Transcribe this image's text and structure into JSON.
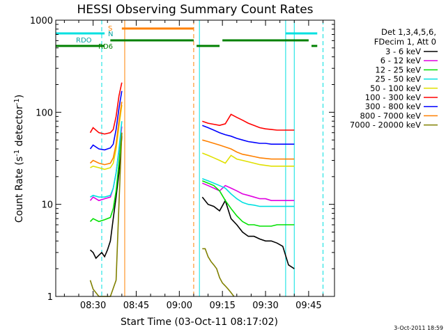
{
  "chart_data": {
    "type": "line",
    "title": "HESSI Observing Summary Count Rates",
    "xlabel": "Start Time (03-Oct-11 08:17:02)",
    "ylabel_main": "Count Rate (s",
    "ylabel_sup1": "-1",
    "ylabel_mid": " detector",
    "ylabel_sup2": "-1",
    "ylabel_end": ")",
    "yscale": "log",
    "ylim": [
      1,
      1000
    ],
    "xlim": [
      "08:17",
      "09:54"
    ],
    "x_ticks": [
      "08:30",
      "08:45",
      "09:00",
      "09:15",
      "09:30",
      "09:45"
    ],
    "y_ticks": [
      "1",
      "10",
      "100",
      "1000"
    ],
    "legend_header": [
      "Det 1,3,4,5,6,",
      "FDecim 1, Att 0"
    ],
    "timestamp": "3-Oct-2011 18:59",
    "annotations": {
      "rdo": "RDO",
      "rd6": "RD6",
      "s": "S",
      "n": "N"
    },
    "series": [
      {
        "name": "3 - 6 keV",
        "color": "#000000",
        "x": [
          "08:29",
          "08:30",
          "08:31",
          "08:32",
          "08:33",
          "08:34",
          "08:35",
          "08:36",
          "08:37",
          "08:38",
          "08:39",
          "08:40",
          "09:08",
          "09:10",
          "09:12",
          "09:14",
          "09:16",
          "09:18",
          "09:20",
          "09:22",
          "09:24",
          "09:26",
          "09:28",
          "09:30",
          "09:32",
          "09:34",
          "09:36",
          "09:38",
          "09:40"
        ],
        "y": [
          3.2,
          3.0,
          2.6,
          2.8,
          3.0,
          2.7,
          3.2,
          4,
          7,
          12,
          22,
          55,
          12,
          10,
          9.5,
          8.5,
          11,
          7,
          6,
          5,
          4.5,
          4.5,
          4.2,
          4,
          4,
          3.8,
          3.5,
          2.2,
          2.0
        ]
      },
      {
        "name": "6 - 12 keV",
        "color": "#e000e0",
        "x": [
          "08:29",
          "08:30",
          "08:32",
          "08:34",
          "08:36",
          "08:37",
          "08:38",
          "08:39",
          "08:40",
          "09:08",
          "09:10",
          "09:12",
          "09:14",
          "09:16",
          "09:18",
          "09:20",
          "09:22",
          "09:24",
          "09:26",
          "09:28",
          "09:30",
          "09:32",
          "09:34",
          "09:36",
          "09:38",
          "09:40"
        ],
        "y": [
          11,
          12,
          11,
          11.5,
          12,
          15,
          22,
          38,
          70,
          17,
          16,
          15,
          14,
          16,
          15,
          14,
          13,
          12.5,
          12,
          11.5,
          11.5,
          11,
          11,
          11,
          11,
          11
        ]
      },
      {
        "name": "12 - 25 keV",
        "color": "#00e000",
        "x": [
          "08:29",
          "08:30",
          "08:32",
          "08:34",
          "08:36",
          "08:37",
          "08:38",
          "08:39",
          "08:40",
          "09:08",
          "09:10",
          "09:12",
          "09:14",
          "09:16",
          "09:18",
          "09:20",
          "09:22",
          "09:24",
          "09:26",
          "09:28",
          "09:30",
          "09:32",
          "09:34",
          "09:36",
          "09:38",
          "09:40"
        ],
        "y": [
          6.5,
          7,
          6.5,
          6.8,
          7.2,
          9,
          14,
          28,
          60,
          18,
          17,
          16,
          14,
          11,
          9,
          7.5,
          6.5,
          6,
          6,
          5.8,
          5.8,
          5.8,
          6,
          6,
          6,
          6
        ]
      },
      {
        "name": "25 - 50 keV",
        "color": "#00e0e0",
        "x": [
          "08:29",
          "08:30",
          "08:32",
          "08:34",
          "08:36",
          "08:37",
          "08:38",
          "08:39",
          "08:40",
          "09:08",
          "09:10",
          "09:12",
          "09:14",
          "09:16",
          "09:18",
          "09:20",
          "09:22",
          "09:24",
          "09:26",
          "09:28",
          "09:30",
          "09:32",
          "09:34",
          "09:36",
          "09:38",
          "09:40"
        ],
        "y": [
          12,
          12.5,
          12,
          12,
          12.5,
          15,
          22,
          40,
          80,
          19,
          18,
          17,
          16,
          15,
          13,
          11.5,
          10.5,
          10,
          9.8,
          9.5,
          9.5,
          9.5,
          9.5,
          9.5,
          9.5,
          9.5
        ]
      },
      {
        "name": "50 - 100 keV",
        "color": "#e0e000",
        "x": [
          "08:29",
          "08:30",
          "08:32",
          "08:34",
          "08:36",
          "08:37",
          "08:38",
          "08:39",
          "08:40",
          "09:08",
          "09:10",
          "09:12",
          "09:14",
          "09:16",
          "09:18",
          "09:20",
          "09:22",
          "09:24",
          "09:26",
          "09:28",
          "09:30",
          "09:32",
          "09:34",
          "09:36",
          "09:38",
          "09:40"
        ],
        "y": [
          25,
          26,
          25,
          24,
          25,
          28,
          40,
          70,
          120,
          36,
          34,
          32,
          30,
          28,
          34,
          31,
          30,
          29,
          28,
          27,
          26.5,
          26,
          26,
          26,
          26,
          26
        ]
      },
      {
        "name": "100 - 300 keV",
        "color": "#ff0000",
        "x": [
          "08:29",
          "08:30",
          "08:32",
          "08:34",
          "08:36",
          "08:37",
          "08:38",
          "08:39",
          "08:40",
          "09:08",
          "09:10",
          "09:12",
          "09:14",
          "09:16",
          "09:18",
          "09:20",
          "09:22",
          "09:24",
          "09:26",
          "09:28",
          "09:30",
          "09:32",
          "09:34",
          "09:36",
          "09:38",
          "09:40"
        ],
        "y": [
          60,
          68,
          60,
          58,
          60,
          65,
          90,
          150,
          210,
          80,
          76,
          74,
          72,
          75,
          95,
          88,
          82,
          76,
          72,
          68,
          66,
          65,
          64,
          64,
          64,
          64
        ]
      },
      {
        "name": "300 - 800 keV",
        "color": "#0000ff",
        "x": [
          "08:29",
          "08:30",
          "08:32",
          "08:34",
          "08:36",
          "08:37",
          "08:38",
          "08:39",
          "08:40",
          "09:08",
          "09:10",
          "09:12",
          "09:14",
          "09:16",
          "09:18",
          "09:20",
          "09:22",
          "09:24",
          "09:26",
          "09:28",
          "09:30",
          "09:32",
          "09:34",
          "09:36",
          "09:38",
          "09:40"
        ],
        "y": [
          40,
          44,
          40,
          39,
          41,
          45,
          65,
          110,
          170,
          72,
          68,
          64,
          60,
          57,
          55,
          52,
          50,
          48,
          47,
          46,
          46,
          45,
          45,
          45,
          45,
          45
        ]
      },
      {
        "name": "800 - 7000 keV",
        "color": "#ff8000",
        "x": [
          "08:29",
          "08:30",
          "08:32",
          "08:34",
          "08:36",
          "08:37",
          "08:38",
          "08:39",
          "08:40",
          "09:08",
          "09:10",
          "09:12",
          "09:14",
          "09:16",
          "09:18",
          "09:20",
          "09:22",
          "09:24",
          "09:26",
          "09:28",
          "09:30",
          "09:32",
          "09:34",
          "09:36",
          "09:38",
          "09:40"
        ],
        "y": [
          28,
          30,
          28,
          27,
          28,
          32,
          45,
          80,
          130,
          50,
          48,
          46,
          44,
          42,
          40,
          37,
          35,
          34,
          33,
          32,
          31.5,
          31,
          31,
          31,
          31,
          31
        ]
      },
      {
        "name": "7000 - 20000 keV",
        "color": "#808000",
        "x": [
          "08:29",
          "08:30",
          "08:32",
          "08:34",
          "08:36",
          "08:38",
          "08:39",
          "08:40",
          "09:08",
          "09:09",
          "09:10",
          "09:11",
          "09:12",
          "09:13",
          "09:14",
          "09:15",
          "09:16",
          "09:17",
          "09:18",
          "09:19"
        ],
        "y": [
          1.5,
          1.2,
          1.0,
          1.0,
          1.0,
          1.5,
          10,
          60,
          3.3,
          3.3,
          2.7,
          2.4,
          2.2,
          2.0,
          1.6,
          1.4,
          1.3,
          1.2,
          1.1,
          1.0
        ]
      }
    ],
    "overlays": {
      "attenuator_state": {
        "color": "#ff8000",
        "segments": [
          [
            "08:40",
            "09:05"
          ]
        ]
      },
      "decimation_rdo": {
        "color": "#00e0e0",
        "segments": [
          [
            "08:17",
            "08:34"
          ],
          [
            "09:37",
            "09:48"
          ]
        ]
      },
      "decimation_rd6": {
        "color": "#008000",
        "segments": [
          [
            "08:17",
            "08:34"
          ],
          [
            "08:36",
            "09:05"
          ],
          [
            "09:06",
            "09:14"
          ],
          [
            "09:15",
            "09:45"
          ],
          [
            "09:46",
            "09:48"
          ]
        ]
      },
      "vertical_markers": [
        {
          "time": "08:17",
          "color": "#00e0e0",
          "style": "solid"
        },
        {
          "time": "08:33",
          "color": "#00e0e0",
          "style": "dashed"
        },
        {
          "time": "08:41",
          "color": "#ff8000",
          "style": "solid"
        },
        {
          "time": "09:05",
          "color": "#ff8000",
          "style": "dashed"
        },
        {
          "time": "09:07",
          "color": "#00e0e0",
          "style": "solid"
        },
        {
          "time": "09:37",
          "color": "#00e0e0",
          "style": "solid"
        },
        {
          "time": "09:40",
          "color": "#00e0e0",
          "style": "solid"
        },
        {
          "time": "09:50",
          "color": "#00e0e0",
          "style": "dashed"
        }
      ]
    }
  }
}
